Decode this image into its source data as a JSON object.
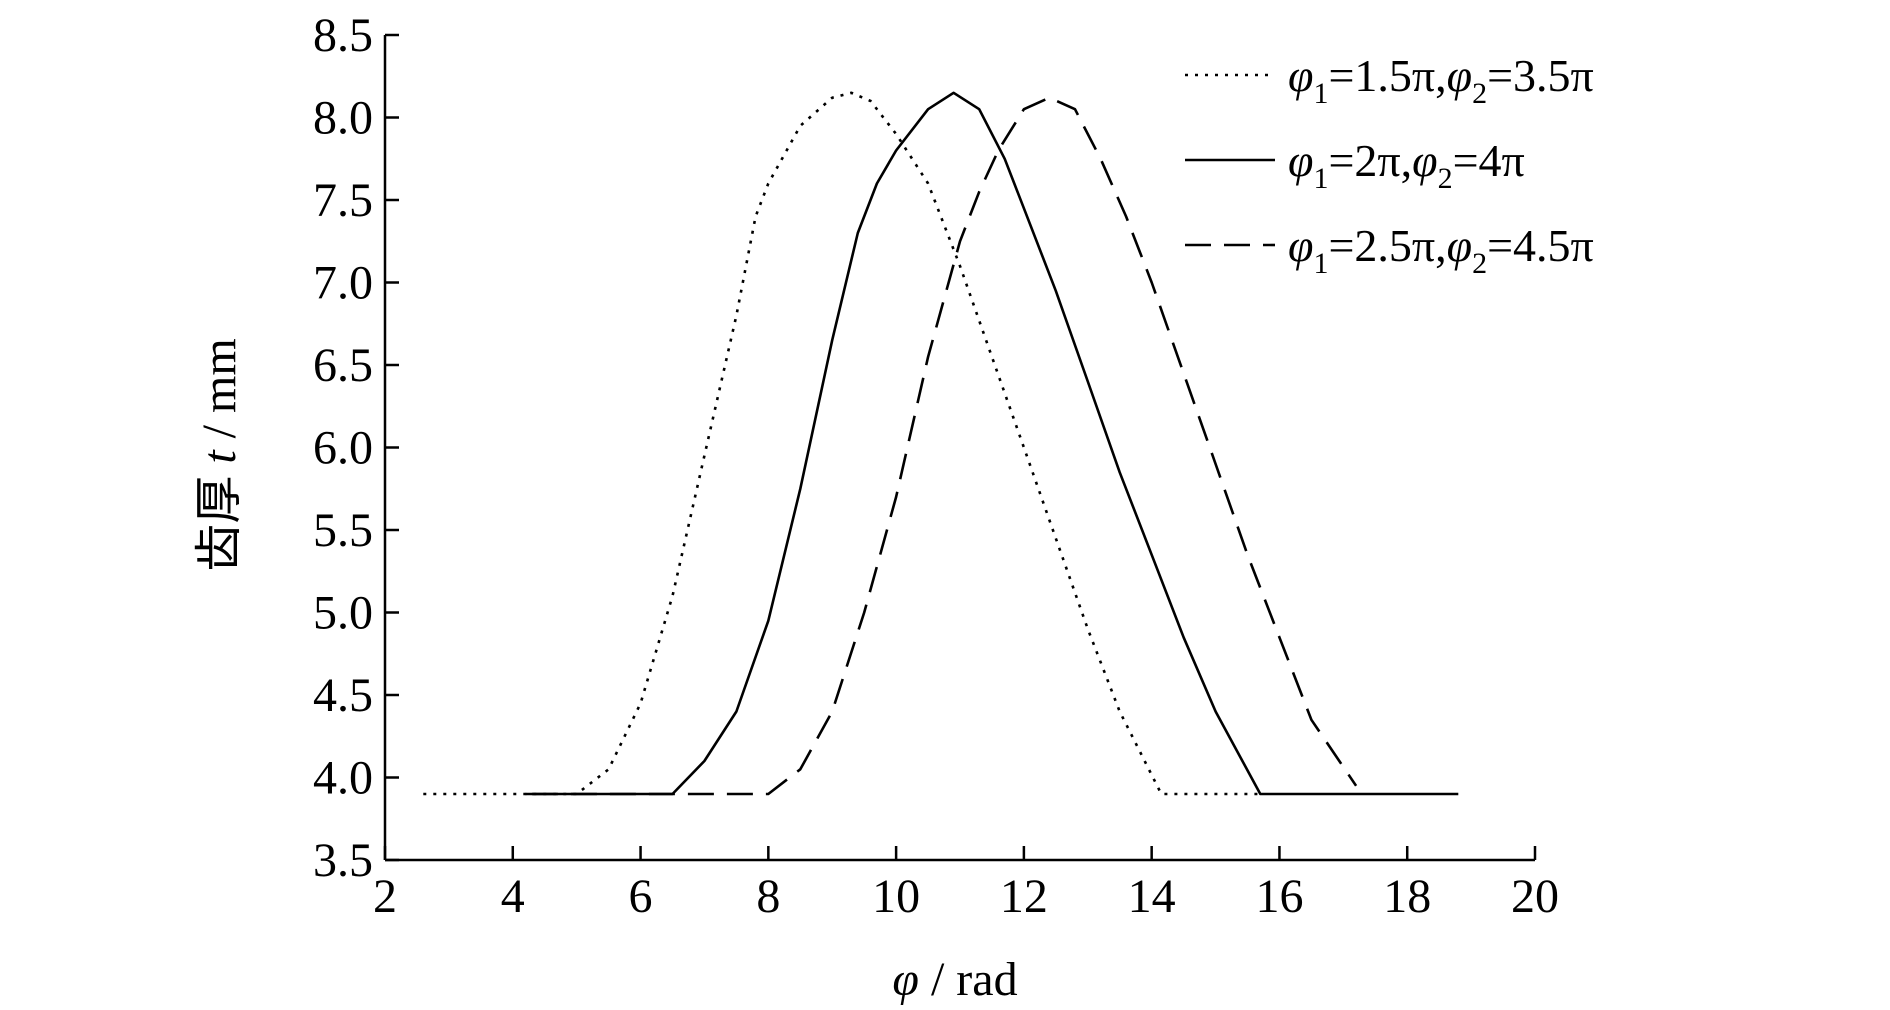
{
  "chart_data": {
    "type": "line",
    "xlabel": {
      "symbol": "φ",
      "rest": " / rad"
    },
    "ylabel": {
      "prefix": "齿厚 ",
      "symbol": "t",
      "rest": " / mm"
    },
    "xlim": [
      2,
      20
    ],
    "ylim": [
      3.5,
      8.5
    ],
    "xticks": [
      "2",
      "4",
      "6",
      "8",
      "10",
      "12",
      "14",
      "16",
      "18",
      "20"
    ],
    "yticks": [
      "3.5",
      "4.0",
      "4.5",
      "5.0",
      "5.5",
      "6.0",
      "6.5",
      "7.0",
      "7.5",
      "8.0",
      "8.5"
    ],
    "grid": false,
    "legend_position": "top-right",
    "series": [
      {
        "name_parts": {
          "s1": "φ",
          "sub1": "1",
          "v1": "=1.5π,",
          "s2": "φ",
          "sub2": "2",
          "v2": "=3.5π"
        },
        "style": "dotted",
        "x": [
          2.6,
          5.0,
          5.5,
          6.0,
          6.5,
          7.0,
          7.5,
          7.8,
          8.0,
          8.5,
          9.0,
          9.3,
          9.6,
          10.0,
          10.5,
          11.0,
          11.5,
          12.0,
          12.5,
          13.0,
          13.5,
          14.15,
          15.7
        ],
        "y": [
          3.9,
          3.9,
          4.05,
          4.45,
          5.1,
          5.95,
          6.8,
          7.4,
          7.6,
          7.95,
          8.12,
          8.15,
          8.1,
          7.9,
          7.6,
          7.1,
          6.55,
          6.0,
          5.45,
          4.9,
          4.4,
          3.9,
          3.9
        ]
      },
      {
        "name_parts": {
          "s1": "φ",
          "sub1": "1",
          "v1": "=2π,",
          "s2": "φ",
          "sub2": "2",
          "v2": "=4π"
        },
        "style": "solid",
        "x": [
          4.2,
          6.5,
          7.0,
          7.5,
          8.0,
          8.5,
          9.0,
          9.4,
          9.7,
          10.0,
          10.5,
          10.9,
          11.3,
          11.7,
          12.0,
          12.5,
          13.0,
          13.5,
          14.0,
          14.5,
          15.0,
          15.7,
          18.8
        ],
        "y": [
          3.9,
          3.9,
          4.1,
          4.4,
          4.95,
          5.75,
          6.65,
          7.3,
          7.6,
          7.8,
          8.05,
          8.15,
          8.05,
          7.75,
          7.45,
          6.95,
          6.4,
          5.85,
          5.35,
          4.85,
          4.4,
          3.9,
          3.9
        ]
      },
      {
        "name_parts": {
          "s1": "φ",
          "sub1": "1",
          "v1": "=2.5π,",
          "s2": "φ",
          "sub2": "2",
          "v2": "=4.5π"
        },
        "style": "dashed",
        "x": [
          4.3,
          8.0,
          8.5,
          9.0,
          9.5,
          10.0,
          10.5,
          11.0,
          11.3,
          11.6,
          12.0,
          12.4,
          12.8,
          13.2,
          13.6,
          14.0,
          14.5,
          15.0,
          15.5,
          16.0,
          16.5,
          17.2
        ],
        "y": [
          3.9,
          3.9,
          4.05,
          4.4,
          5.0,
          5.7,
          6.55,
          7.25,
          7.55,
          7.8,
          8.05,
          8.12,
          8.05,
          7.75,
          7.4,
          7.0,
          6.45,
          5.9,
          5.35,
          4.85,
          4.35,
          3.95
        ]
      }
    ]
  }
}
